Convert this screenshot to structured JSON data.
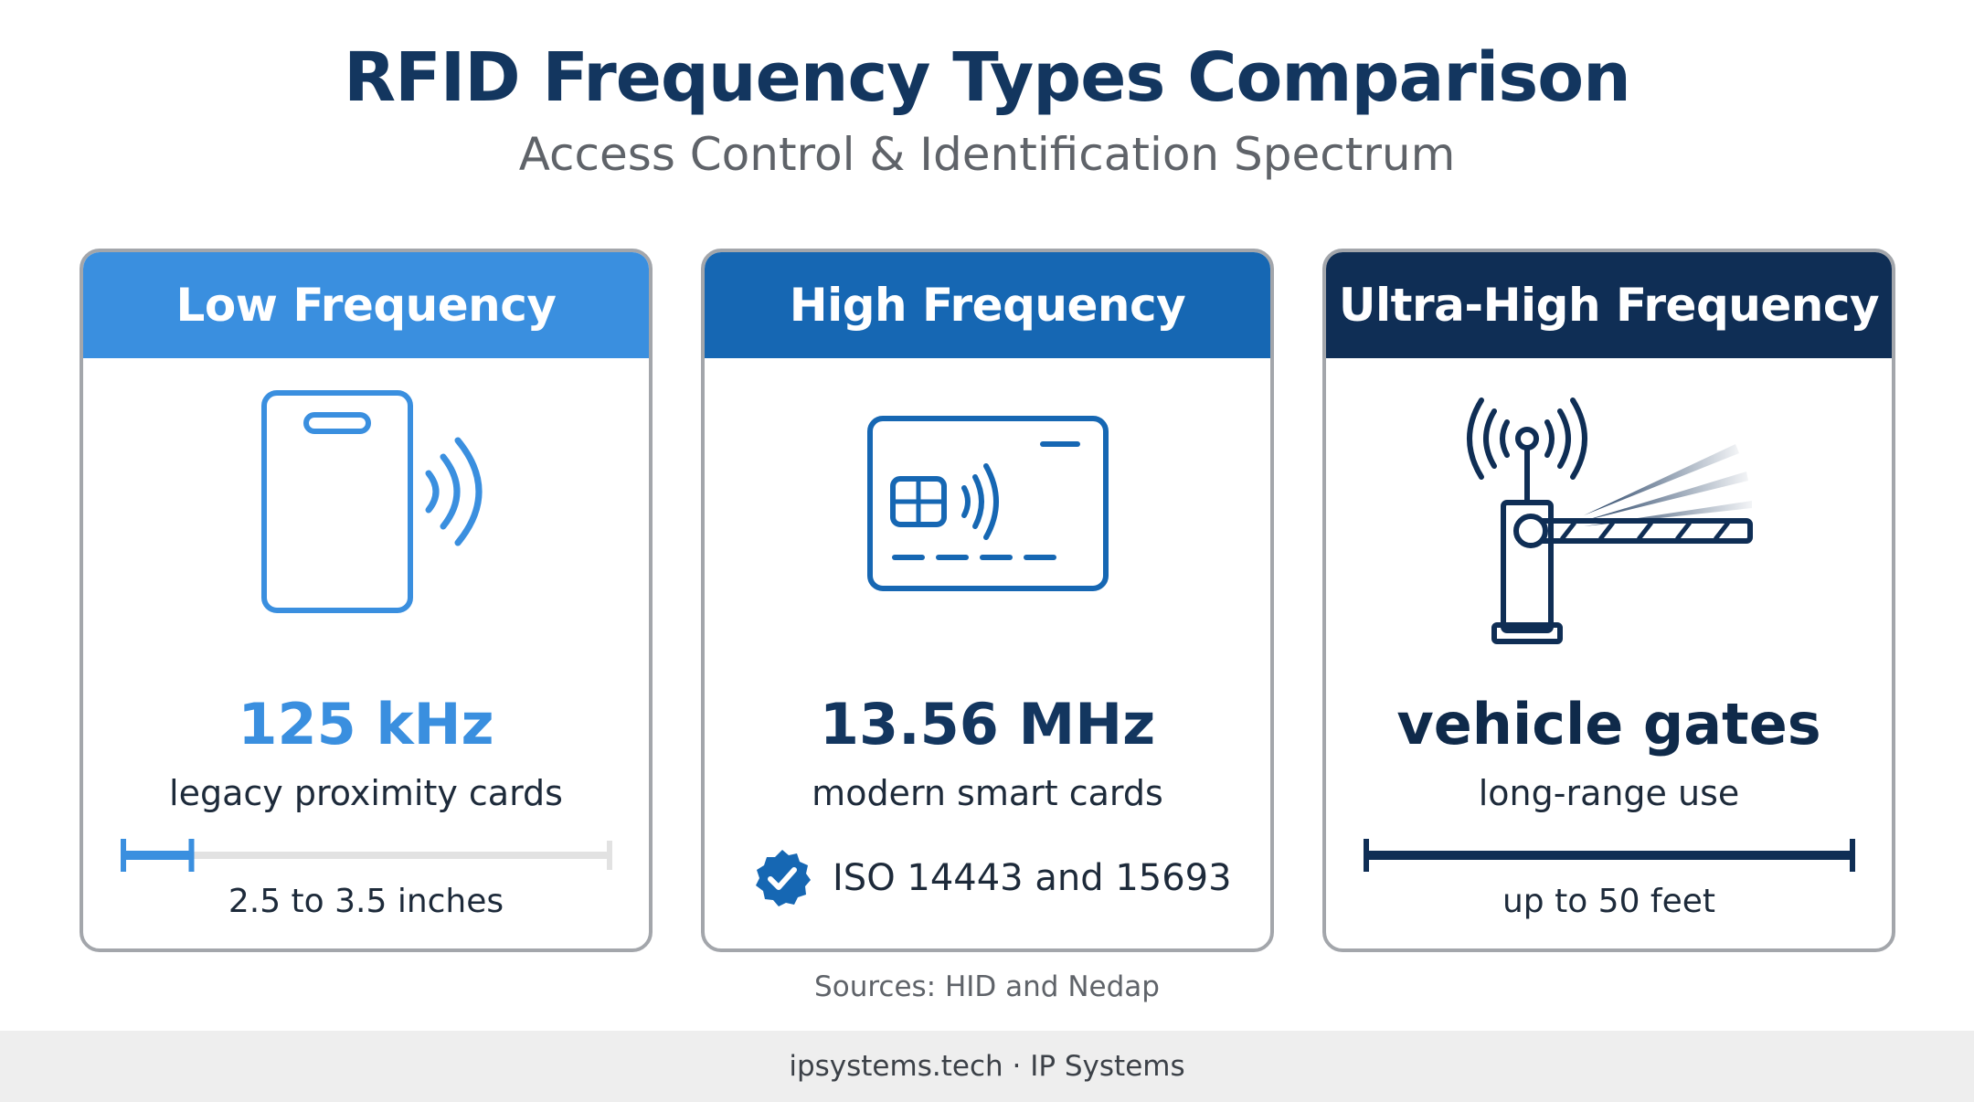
{
  "header": {
    "title": "RFID Frequency Types Comparison",
    "subtitle": "Access Control & Identification Spectrum"
  },
  "cards": [
    {
      "name": "Low Frequency",
      "icon": "proximity-card-icon",
      "headline": "125 kHz",
      "description": "legacy proximity cards",
      "range_label": "2.5 to 3.5 inches",
      "range_fill_fraction": 0.14,
      "color": "#3a8fdf"
    },
    {
      "name": "High Frequency",
      "icon": "smart-card-icon",
      "headline": "13.56 MHz",
      "description": "modern smart cards",
      "standard": "ISO 14443 and 15693",
      "color": "#1667b3"
    },
    {
      "name": "Ultra-High Frequency",
      "icon": "vehicle-gate-antenna-icon",
      "headline": "vehicle gates",
      "description": "long-range use",
      "range_label": "up to 50 feet",
      "range_fill_fraction": 1.0,
      "color": "#0f2e55"
    }
  ],
  "sources": "Sources: HID and Nedap",
  "footer": "ipsystems.tech · IP Systems"
}
